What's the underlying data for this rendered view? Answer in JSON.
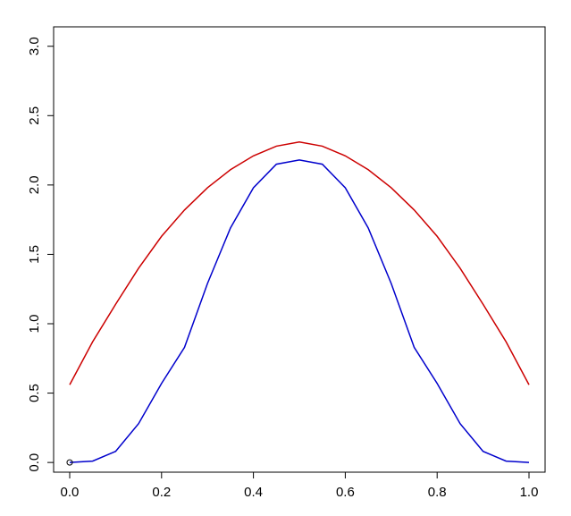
{
  "chart_data": {
    "type": "line",
    "x": [
      0,
      0.05,
      0.1,
      0.15,
      0.2,
      0.25,
      0.3,
      0.35,
      0.4,
      0.45,
      0.5,
      0.55,
      0.6,
      0.65,
      0.7,
      0.75,
      0.8,
      0.85,
      0.9,
      0.95,
      1
    ],
    "series": [
      {
        "color": "#cc0000",
        "values": [
          0.56,
          0.87,
          1.14,
          1.4,
          1.63,
          1.82,
          1.98,
          2.11,
          2.21,
          2.28,
          2.31,
          2.28,
          2.21,
          2.11,
          1.98,
          1.82,
          1.63,
          1.4,
          1.14,
          0.87,
          0.56
        ]
      },
      {
        "color": "#0000cc",
        "values": [
          0,
          0.01,
          0.08,
          0.28,
          0.57,
          0.83,
          1.29,
          1.69,
          1.98,
          2.15,
          2.18,
          2.15,
          1.98,
          1.69,
          1.29,
          0.83,
          0.57,
          0.28,
          0.08,
          0.01,
          0
        ]
      }
    ],
    "points": {
      "x": [
        0
      ],
      "y": [
        0
      ],
      "color": "#000000"
    },
    "xlim": [
      -0.035,
      1.035
    ],
    "ylim": [
      -0.07,
      3.14
    ],
    "xticks": [
      {
        "value": 0,
        "label": "0.0"
      },
      0.2,
      0.4,
      0.6,
      0.8,
      {
        "value": 1,
        "label": "1.0"
      }
    ],
    "yticks": [
      {
        "value": 0,
        "label": "0.0"
      },
      0.5,
      {
        "value": 1,
        "label": "1.0"
      },
      1.5,
      {
        "value": 2,
        "label": "2.0"
      },
      2.5,
      {
        "value": 3,
        "label": "3.0"
      }
    ]
  }
}
